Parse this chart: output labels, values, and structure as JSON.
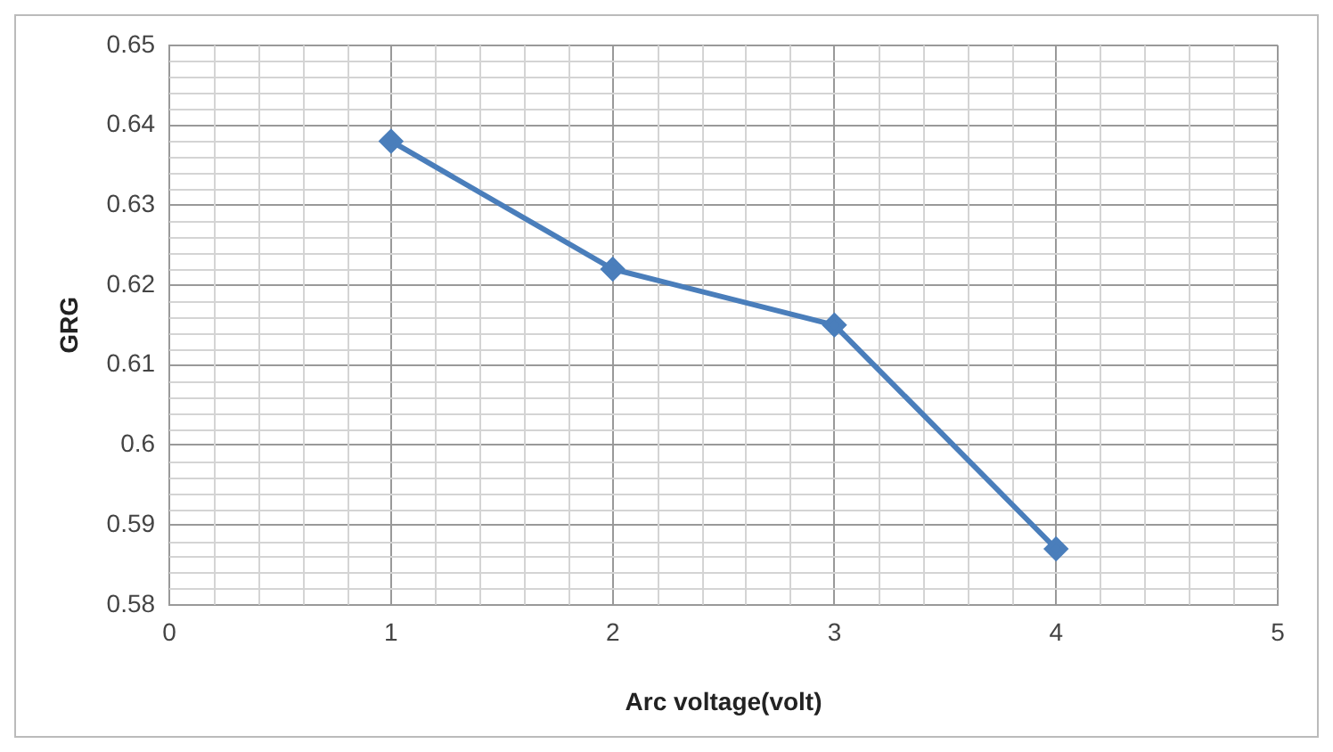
{
  "chart_data": {
    "type": "line",
    "xlabel": "Arc voltage(volt)",
    "ylabel": "GRG",
    "x": [
      1,
      2,
      3,
      4
    ],
    "series": [
      {
        "color": "#4a7ebb",
        "values": [
          0.638,
          0.622,
          0.615,
          0.587
        ]
      }
    ],
    "xlim": [
      0,
      5
    ],
    "xticks": [
      0,
      1,
      2,
      3,
      4,
      5
    ],
    "ylim": [
      0.58,
      0.65
    ],
    "yticks": [
      0.58,
      0.59,
      0.6,
      0.61,
      0.62,
      0.63,
      0.64,
      0.65
    ],
    "grid": true,
    "legend": false,
    "marker": "diamond",
    "line_style": "solid"
  }
}
